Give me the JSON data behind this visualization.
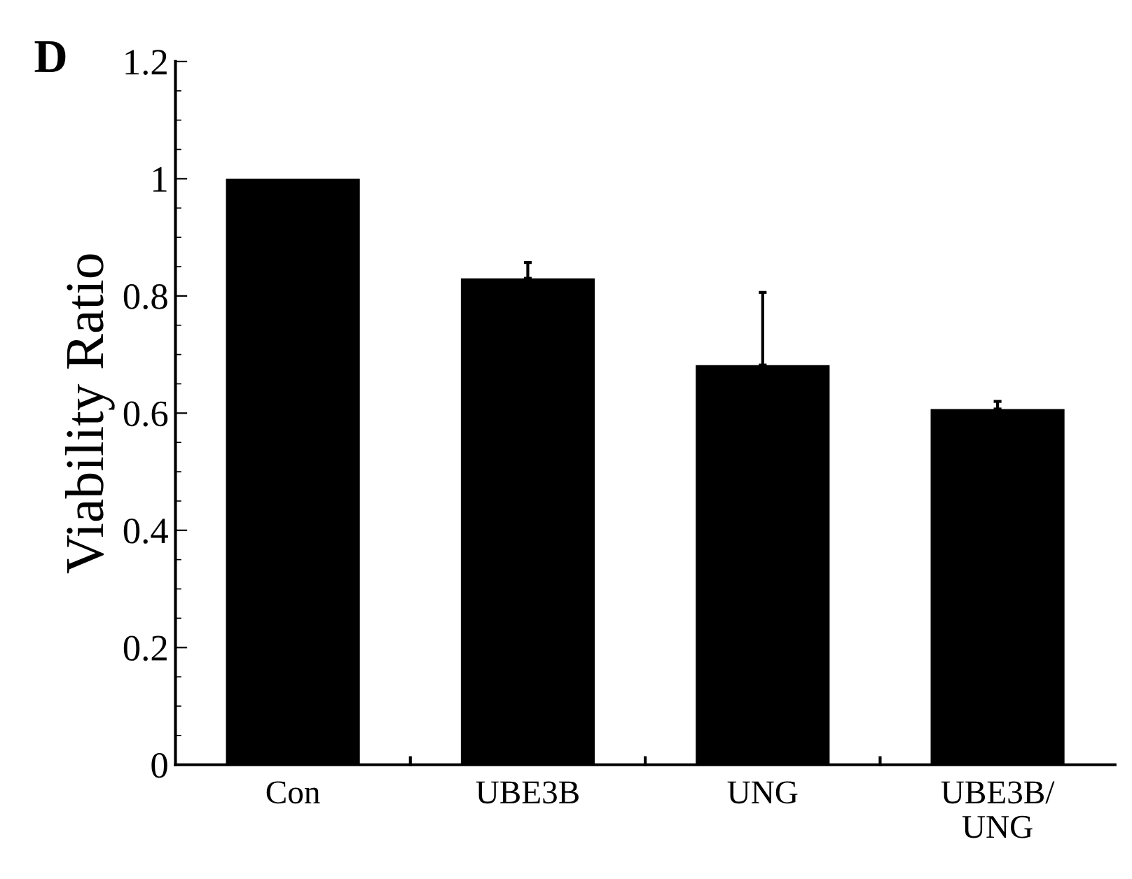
{
  "chart_data": {
    "type": "bar",
    "annotations": [
      "D"
    ],
    "ylabel": "Viability Ratio",
    "categories": [
      "Con",
      "UBE3B",
      "UNG",
      "UBE3B/\nUNG"
    ],
    "values": [
      1.0,
      0.83,
      0.682,
      0.607
    ],
    "errors": [
      null,
      [
        0.83,
        0.857
      ],
      [
        0.682,
        0.806
      ],
      [
        0.607,
        0.62
      ]
    ],
    "color": "#000000",
    "ylim": [
      0,
      1.2
    ],
    "yticks": [
      0,
      0.2,
      0.4,
      0.6,
      0.8,
      1,
      1.2
    ],
    "grid": false,
    "legend": false
  }
}
